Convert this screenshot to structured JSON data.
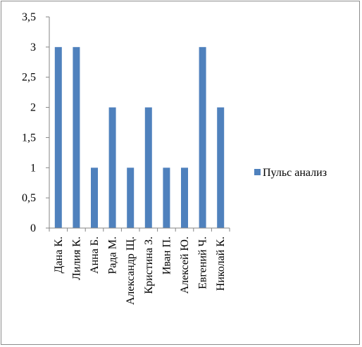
{
  "chart_data": {
    "type": "bar",
    "categories": [
      "Дана  К.",
      "Лилия К.",
      "Анна Б.",
      "Рада М.",
      "Александр Щ.",
      "Кристина З.",
      "Иван П.",
      "Алексей Ю.",
      "Евгений Ч.",
      "Николай К."
    ],
    "series": [
      {
        "name": "Пульс анализ",
        "values": [
          3,
          3,
          1,
          2,
          1,
          2,
          1,
          1,
          3,
          2
        ],
        "color": "#4F81BD"
      }
    ],
    "yticks": [
      "0",
      "0,5",
      "1",
      "1,5",
      "2",
      "2,5",
      "3",
      "3,5"
    ],
    "ylim": [
      0,
      3.5
    ],
    "grid": false,
    "legend": "right"
  }
}
